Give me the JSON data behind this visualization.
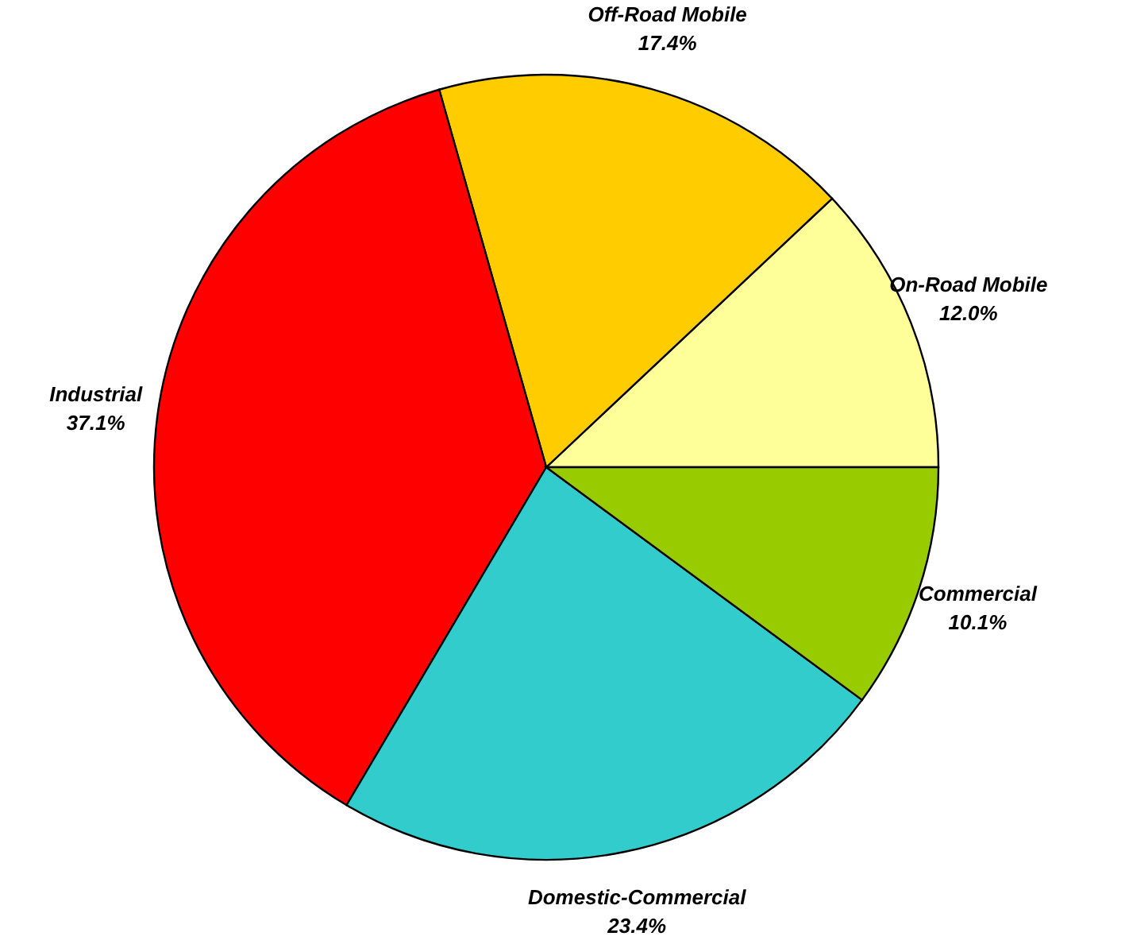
{
  "chart_data": {
    "type": "pie",
    "categories": [
      "On-Road Mobile",
      "Off-Road Mobile",
      "Industrial",
      "Domestic-Commercial",
      "Commercial"
    ],
    "values": [
      12.0,
      17.4,
      37.1,
      23.4,
      10.1
    ],
    "colors": [
      "#ffff99",
      "#ffcc00",
      "#ff0000",
      "#33cccc",
      "#99cc00"
    ],
    "value_labels": [
      "12.0%",
      "17.4%",
      "37.1%",
      "23.4%",
      "10.1%"
    ]
  }
}
